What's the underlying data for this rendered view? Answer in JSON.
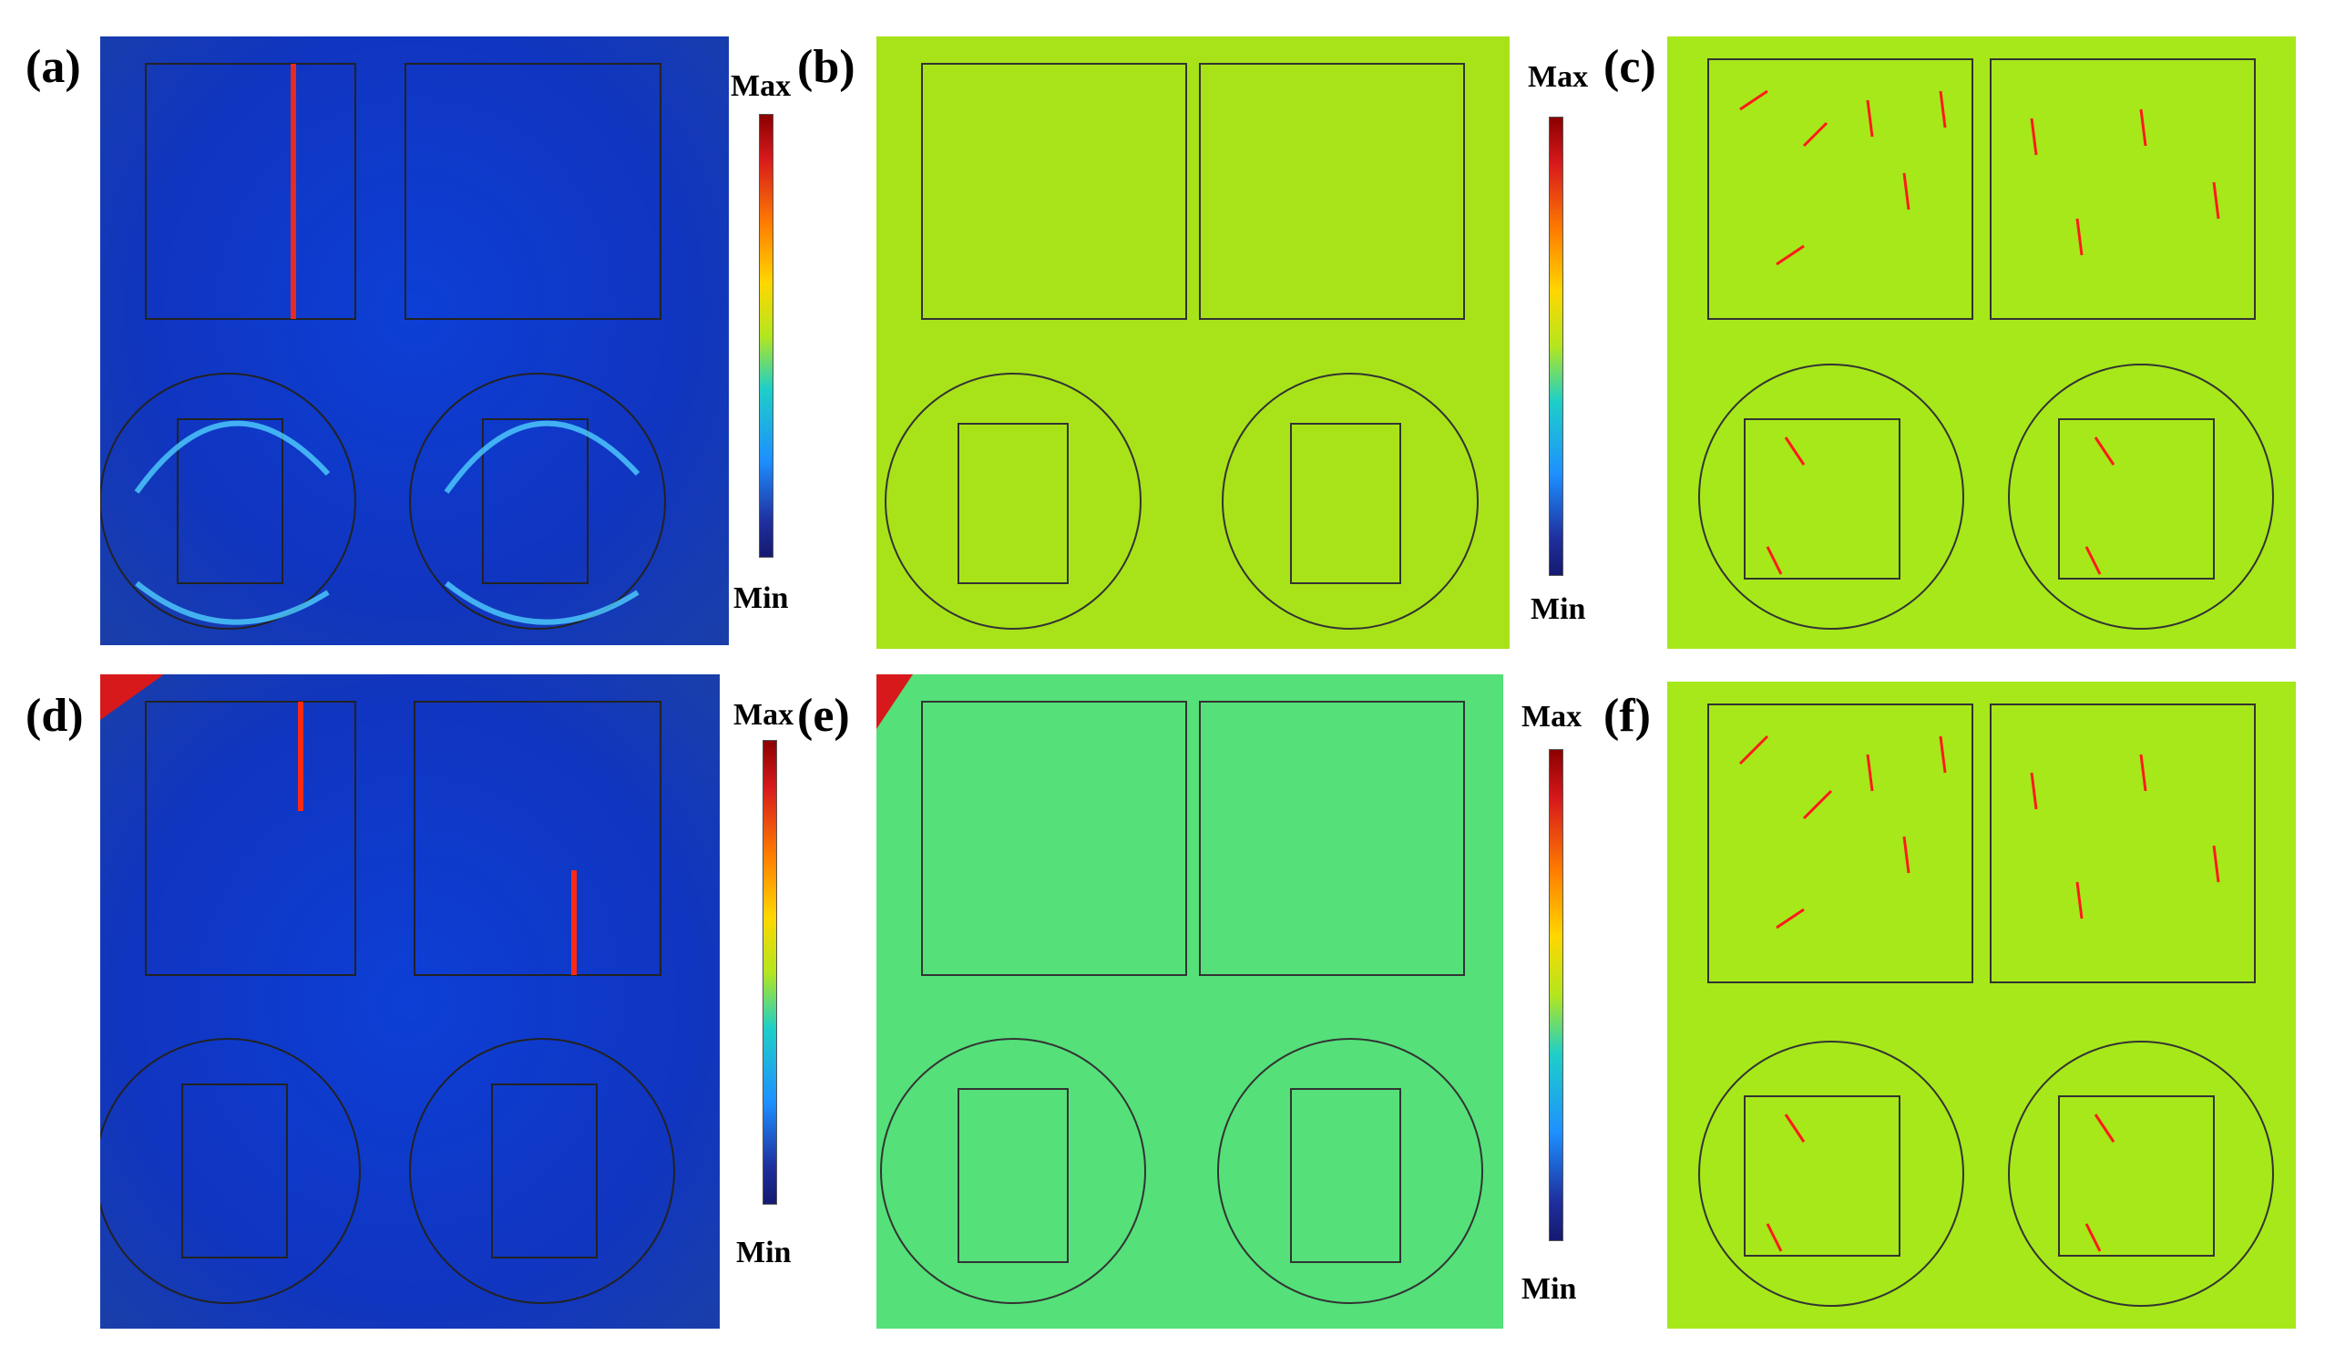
{
  "panels": [
    {
      "label": "(a)",
      "colorbar": {
        "max": "Max",
        "min": "Min"
      }
    },
    {
      "label": "(b)",
      "colorbar": {
        "max": "Max",
        "min": "Min"
      }
    },
    {
      "label": "(c)"
    },
    {
      "label": "(d)",
      "colorbar": {
        "max": "Max",
        "min": "Min"
      }
    },
    {
      "label": "(e)",
      "colorbar": {
        "max": "Max",
        "min": "Min"
      }
    },
    {
      "label": "(f)"
    }
  ],
  "colors": {
    "field_low": "#1a3fc4",
    "field_high": "#d7191c",
    "surface_green": "#a6e81a",
    "surface_green_alt": "#55e07a",
    "arrow": "#ff1a1a",
    "outline": "#333333"
  }
}
